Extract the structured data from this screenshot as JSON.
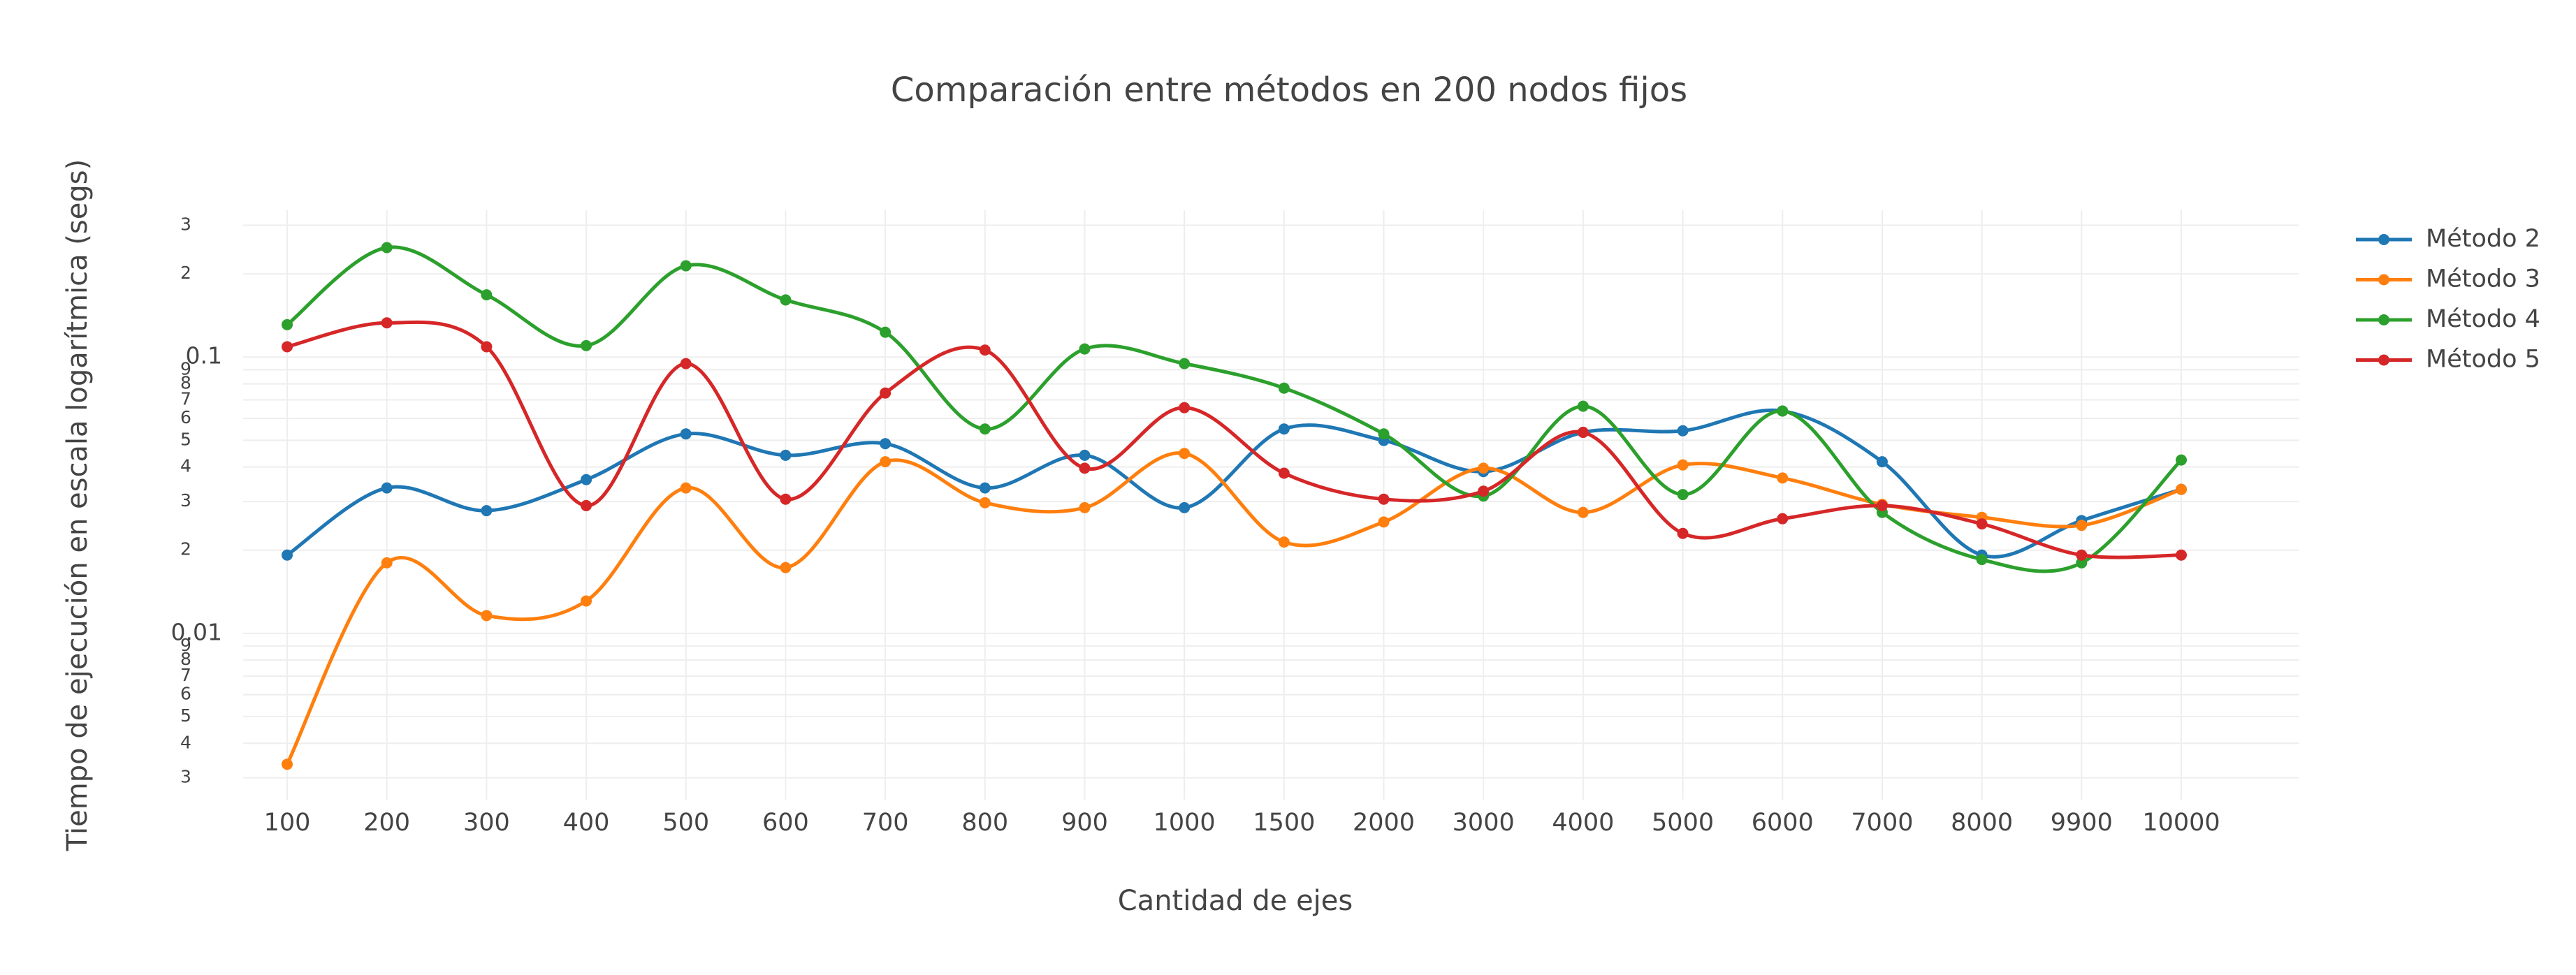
{
  "chart_data": {
    "type": "line",
    "title": "Comparación entre métodos en 200 nodos fijos",
    "x_label": "Cantidad de ejes",
    "y_label": "Tiempo de ejecución en escala logarítmica (segs)",
    "categories": [
      "100",
      "200",
      "300",
      "400",
      "500",
      "600",
      "700",
      "800",
      "900",
      "1000",
      "1500",
      "2000",
      "3000",
      "4000",
      "5000",
      "6000",
      "7000",
      "8000",
      "9900",
      "10000"
    ],
    "ylog": true,
    "grid": true,
    "legend": "right",
    "ylim": [
      0.0025,
      0.34
    ],
    "yticks": [
      {
        "value": 0.003,
        "label": "3"
      },
      {
        "value": 0.004,
        "label": "4"
      },
      {
        "value": 0.005,
        "label": "5"
      },
      {
        "value": 0.006,
        "label": "6"
      },
      {
        "value": 0.007,
        "label": "7"
      },
      {
        "value": 0.008,
        "label": "8"
      },
      {
        "value": 0.009,
        "label": "9"
      },
      0.01,
      {
        "value": 0.02,
        "label": "2"
      },
      {
        "value": 0.03,
        "label": "3"
      },
      {
        "value": 0.04,
        "label": "4"
      },
      {
        "value": 0.05,
        "label": "5"
      },
      {
        "value": 0.06,
        "label": "6"
      },
      {
        "value": 0.07,
        "label": "7"
      },
      {
        "value": 0.08,
        "label": "8"
      },
      {
        "value": 0.09,
        "label": "9"
      },
      0.1,
      {
        "value": 0.2,
        "label": "2"
      },
      {
        "value": 0.3,
        "label": "3"
      }
    ],
    "series": [
      {
        "name": "Método 2",
        "color": "#1f77b4",
        "values": [
          0.0192,
          0.0336,
          0.0278,
          0.036,
          0.0527,
          0.0441,
          0.0486,
          0.0336,
          0.0441,
          0.0285,
          0.0549,
          0.0499,
          0.0385,
          0.0534,
          0.0541,
          0.0638,
          0.0418,
          0.0192,
          0.0256,
          0.0332
        ]
      },
      {
        "name": "Método 3",
        "color": "#ff7f0e",
        "values": [
          0.00336,
          0.018,
          0.0116,
          0.0131,
          0.0336,
          0.0173,
          0.0418,
          0.0297,
          0.0285,
          0.0448,
          0.0214,
          0.0253,
          0.0396,
          0.0274,
          0.0407,
          0.0365,
          0.0293,
          0.0263,
          0.0246,
          0.0332
        ]
      },
      {
        "name": "Método 4",
        "color": "#2ca02c",
        "values": [
          0.131,
          0.249,
          0.168,
          0.11,
          0.214,
          0.161,
          0.123,
          0.0549,
          0.107,
          0.0947,
          0.0772,
          0.0527,
          0.0314,
          0.0664,
          0.0318,
          0.0638,
          0.0274,
          0.0185,
          0.018,
          0.0424
        ]
      },
      {
        "name": "Método 5",
        "color": "#d62728",
        "values": [
          0.109,
          0.133,
          0.109,
          0.029,
          0.0947,
          0.0306,
          0.0741,
          0.106,
          0.0396,
          0.0656,
          0.038,
          0.0306,
          0.0327,
          0.0534,
          0.023,
          0.026,
          0.029,
          0.0249,
          0.0192,
          0.0192
        ]
      }
    ]
  }
}
